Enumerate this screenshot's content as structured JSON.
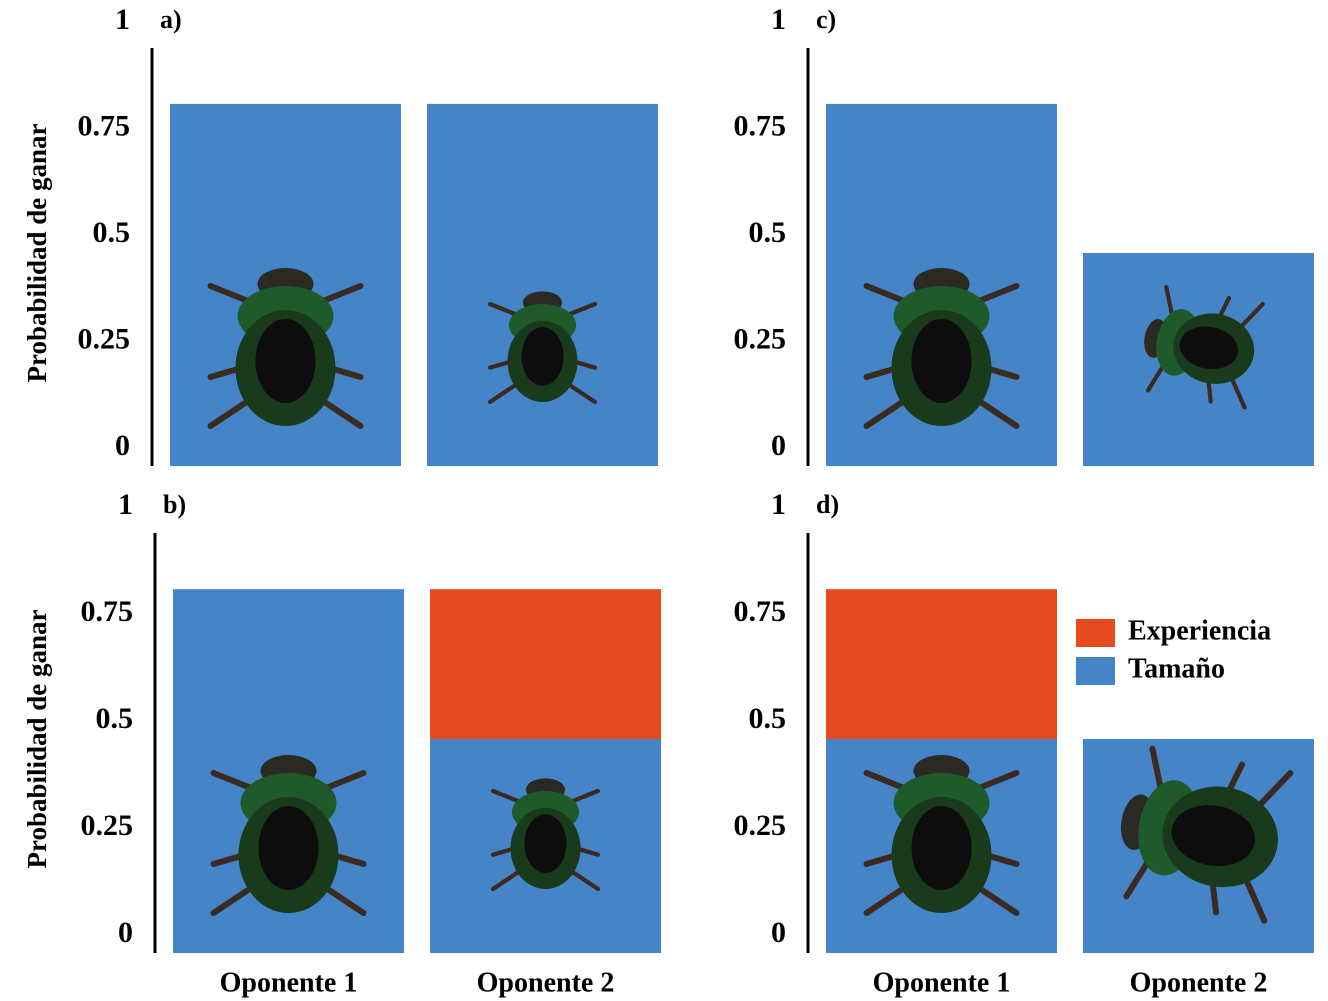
{
  "chart_data": [
    {
      "type": "bar",
      "stacked": true,
      "label": "a)",
      "ylabel": "Probabilidad de ganar",
      "categories": [
        null,
        null
      ],
      "ylim": [
        0,
        1
      ],
      "yticks": [
        0,
        0.25,
        0.5,
        0.75,
        1
      ],
      "series": [
        {
          "name": "Tamaño",
          "color": "#4584c6",
          "values": [
            0.85,
            0.85
          ]
        }
      ]
    },
    {
      "type": "bar",
      "stacked": true,
      "label": "b)",
      "ylabel": "Probabilidad de ganar",
      "categories": [
        "Oponente 1",
        "Oponente 2"
      ],
      "ylim": [
        0,
        1
      ],
      "yticks": [
        0,
        0.25,
        0.5,
        0.75,
        1
      ],
      "series": [
        {
          "name": "Tamaño",
          "color": "#4584c6",
          "values": [
            0.85,
            0.5
          ]
        },
        {
          "name": "Experiencia",
          "color": "#e64a1f",
          "values": [
            0,
            0.35
          ]
        }
      ]
    },
    {
      "type": "bar",
      "stacked": true,
      "label": "c)",
      "categories": [
        null,
        null
      ],
      "ylim": [
        0,
        1
      ],
      "yticks": [
        0,
        0.25,
        0.5,
        0.75,
        1
      ],
      "series": [
        {
          "name": "Tamaño",
          "color": "#4584c6",
          "values": [
            0.85,
            0.5
          ]
        }
      ]
    },
    {
      "type": "bar",
      "stacked": true,
      "label": "d)",
      "legend": "right",
      "categories": [
        "Oponente 1",
        "Oponente 2"
      ],
      "ylim": [
        0,
        1
      ],
      "yticks": [
        0,
        0.25,
        0.5,
        0.75,
        1
      ],
      "series": [
        {
          "name": "Tamaño",
          "color": "#4584c6",
          "values": [
            0.5,
            0.5
          ]
        },
        {
          "name": "Experiencia",
          "color": "#e64a1f",
          "values": [
            0.35,
            0
          ]
        }
      ]
    }
  ]
}
